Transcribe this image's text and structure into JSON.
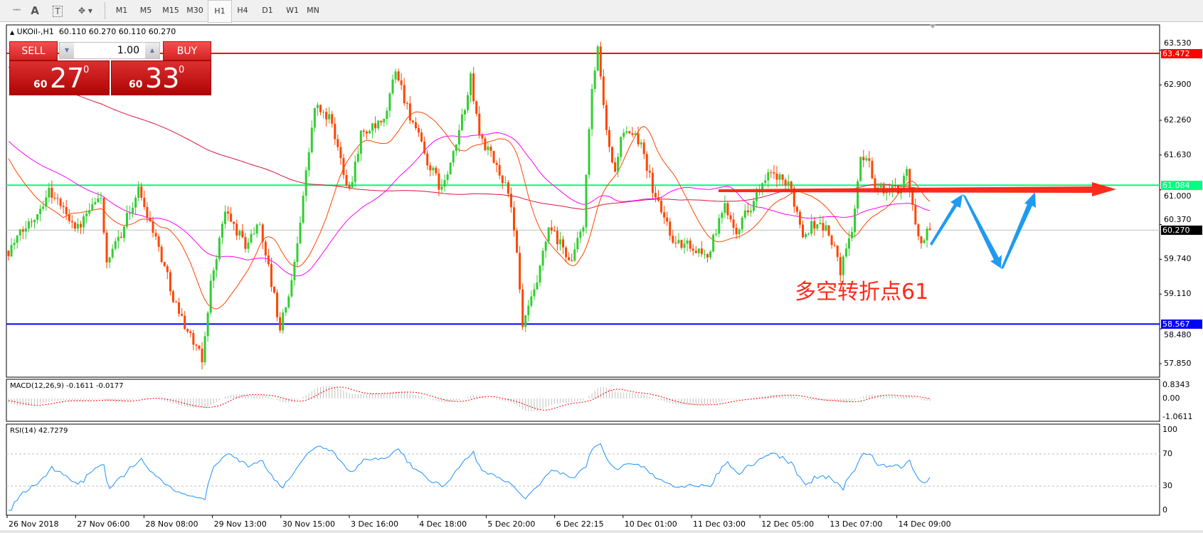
{
  "toolbar": {
    "icons": [
      "period-separators-icon",
      "text-icon",
      "text-label-icon",
      "arrows-icon"
    ],
    "text_glyph": "A",
    "label_glyph": "T",
    "timeframes": [
      "M1",
      "M5",
      "M15",
      "M30",
      "H1",
      "H4",
      "D1",
      "W1",
      "MN"
    ],
    "active_timeframe": "H1"
  },
  "chart": {
    "symbol_title": "UKOil-,H1  60.110 60.270 60.110 60.270",
    "trade_panel": {
      "sell_label": "SELL",
      "buy_label": "BUY",
      "lot": "1.00",
      "sell_big": "60",
      "sell_pips": "27",
      "sell_frac": "0",
      "buy_big": "60",
      "buy_pips": "33",
      "buy_frac": "0"
    },
    "price_axis": [
      "63.530",
      "62.900",
      "62.260",
      "61.630",
      "61.000",
      "60.370",
      "59.740",
      "59.110",
      "58.480",
      "57.850"
    ],
    "horizontal_lines": [
      {
        "price": 63.472,
        "label": "63.472",
        "color": "#ff0000"
      },
      {
        "price": 61.084,
        "label": "61.084",
        "color": "#00ff7f"
      },
      {
        "price": 60.27,
        "label": "60.270",
        "color": "#000000"
      },
      {
        "price": 58.567,
        "label": "58.567",
        "color": "#0000ff"
      }
    ],
    "annotation": "多空转折点61",
    "annotation_color": "#ff2a1a",
    "forecast_arrow_color": "#1e9bf0",
    "pivot_arrow_color": "#ff2010",
    "bull_color": "#32cd32",
    "bear_color": "#ff4500",
    "price_path": [
      [
        0,
        59.9
      ],
      [
        10,
        60.6
      ],
      [
        14,
        61.0
      ],
      [
        24,
        60.3
      ],
      [
        32,
        60.9
      ],
      [
        34,
        59.6
      ],
      [
        45,
        61.0
      ],
      [
        50,
        60.3
      ],
      [
        58,
        58.9
      ],
      [
        67,
        57.9
      ],
      [
        70,
        59.3
      ],
      [
        75,
        60.6
      ],
      [
        82,
        60.0
      ],
      [
        87,
        60.4
      ],
      [
        94,
        58.5
      ],
      [
        98,
        59.3
      ],
      [
        101,
        60.5
      ],
      [
        103,
        61.3
      ],
      [
        106,
        62.5
      ],
      [
        111,
        62.3
      ],
      [
        118,
        61.0
      ],
      [
        122,
        62.0
      ],
      [
        130,
        62.2
      ],
      [
        134,
        63.2
      ],
      [
        138,
        62.5
      ],
      [
        145,
        61.5
      ],
      [
        150,
        61.0
      ],
      [
        154,
        61.6
      ],
      [
        160,
        63.0
      ],
      [
        163,
        62.0
      ],
      [
        173,
        61.0
      ],
      [
        176,
        59.8
      ],
      [
        178,
        58.5
      ],
      [
        183,
        59.3
      ],
      [
        187,
        60.3
      ],
      [
        195,
        59.7
      ],
      [
        199,
        60.4
      ],
      [
        202,
        62.8
      ],
      [
        204,
        63.5
      ],
      [
        207,
        62.0
      ],
      [
        210,
        61.3
      ],
      [
        212,
        62.0
      ],
      [
        219,
        61.9
      ],
      [
        223,
        61.0
      ],
      [
        231,
        60.0
      ],
      [
        236,
        60.0
      ],
      [
        242,
        59.8
      ],
      [
        248,
        60.7
      ],
      [
        252,
        60.3
      ],
      [
        259,
        60.9
      ],
      [
        264,
        61.3
      ],
      [
        271,
        61.0
      ],
      [
        275,
        60.2
      ],
      [
        279,
        60.4
      ],
      [
        283,
        60.3
      ],
      [
        287,
        59.8
      ],
      [
        288,
        59.5
      ],
      [
        292,
        60.3
      ],
      [
        295,
        61.5
      ],
      [
        298,
        61.6
      ],
      [
        300,
        61.0
      ],
      [
        308,
        61.0
      ],
      [
        311,
        61.4
      ],
      [
        314,
        60.3
      ],
      [
        316,
        60.1
      ],
      [
        319,
        60.27
      ]
    ]
  },
  "macd": {
    "label": "MACD(12,26,9) -0.1611 -0.0177",
    "axis": [
      "0.8343",
      "0.00",
      "-1.0611"
    ],
    "signal_color": "#ff0000",
    "hist_color": "#c0c0c0"
  },
  "rsi": {
    "label": "RSI(14) 42.7279",
    "axis": [
      "100",
      "70",
      "30",
      "0"
    ],
    "line_color": "#1e90ff"
  },
  "time_axis": [
    "26 Nov 2018",
    "27 Nov 06:00",
    "28 Nov 08:00",
    "29 Nov 13:00",
    "30 Nov 15:00",
    "3 Dec 16:00",
    "4 Dec 18:00",
    "5 Dec 20:00",
    "6 Dec 22:15",
    "10 Dec 01:00",
    "11 Dec 03:00",
    "12 Dec 05:00",
    "13 Dec 07:00",
    "14 Dec 09:00"
  ]
}
